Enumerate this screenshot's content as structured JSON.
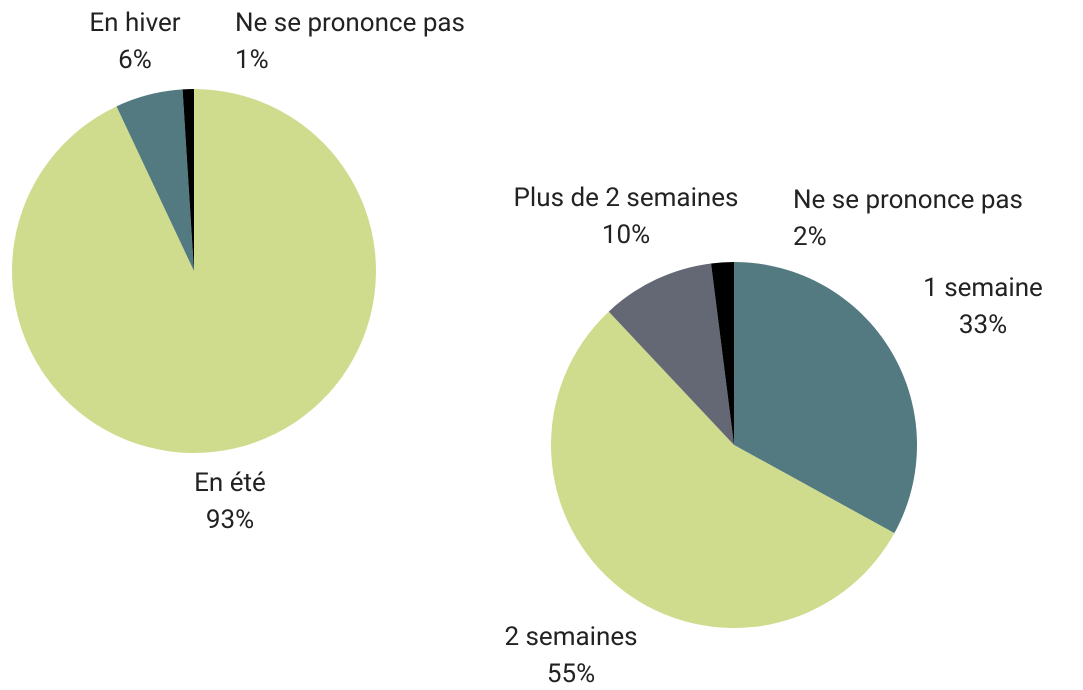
{
  "chart_data": [
    {
      "type": "pie",
      "categories": [
        "En été",
        "En hiver",
        "Ne se prononce pas"
      ],
      "values": [
        93,
        6,
        1
      ],
      "value_labels": [
        "93%",
        "6%",
        "1%"
      ],
      "colors": [
        "#cfdc8e",
        "#527a80",
        "#000000"
      ]
    },
    {
      "type": "pie",
      "categories": [
        "1 semaine",
        "2 semaines",
        "Plus de 2 semaines",
        "Ne se prononce pas"
      ],
      "values": [
        33,
        55,
        10,
        2
      ],
      "value_labels": [
        "33%",
        "55%",
        "10%",
        "2%"
      ],
      "colors": [
        "#527a80",
        "#cfdc8e",
        "#646874",
        "#000000"
      ]
    }
  ]
}
